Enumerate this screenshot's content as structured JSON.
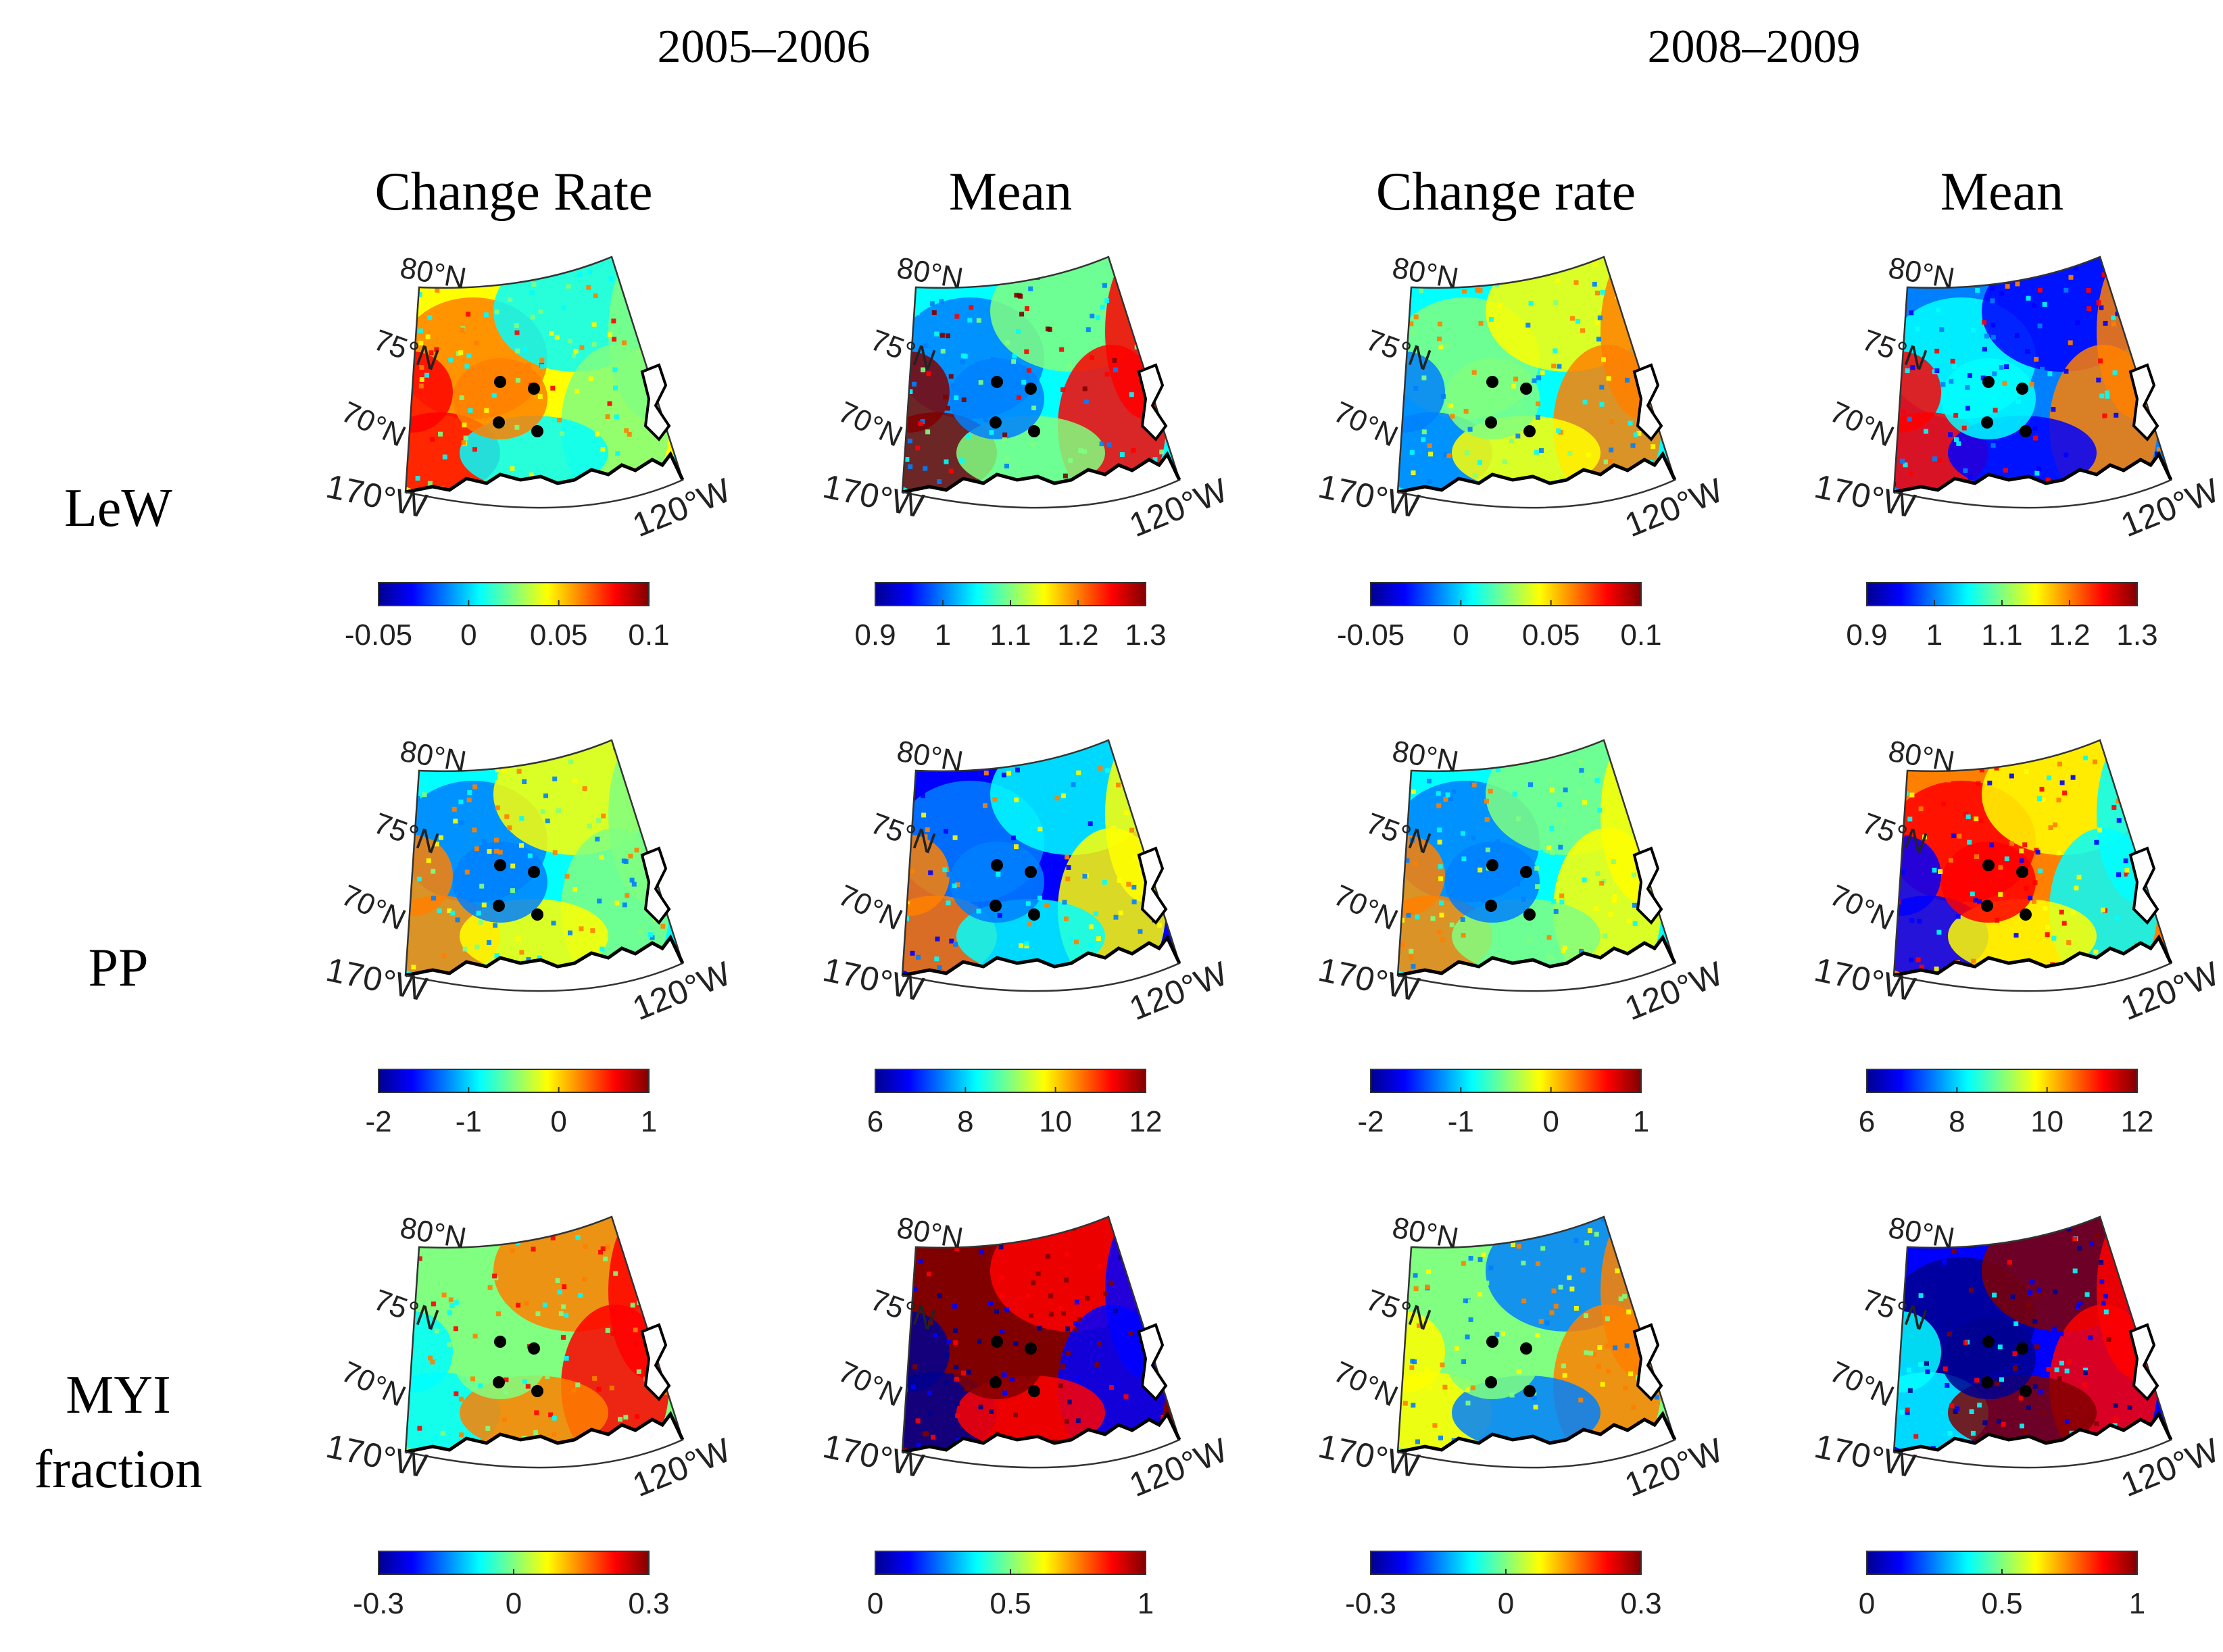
{
  "periods": [
    "2005–2006",
    "2008–2009"
  ],
  "column_titles": [
    "Change Rate",
    "Mean",
    "Change rate",
    "Mean"
  ],
  "rows": [
    {
      "label_lines": [
        "LeW"
      ]
    },
    {
      "label_lines": [
        "PP"
      ]
    },
    {
      "label_lines": [
        "MYI",
        "fraction"
      ]
    }
  ],
  "map_labels": {
    "lat": [
      "80°N",
      "75°N",
      "70°N"
    ],
    "lon_left": "170°W",
    "lon_right": "120°W"
  },
  "colorbar_ticks": [
    [
      [
        "-0.05",
        "0",
        "0.05",
        "0.1"
      ],
      [
        "0.9",
        "1",
        "1.1",
        "1.2",
        "1.3"
      ],
      [
        "-0.05",
        "0",
        "0.05",
        "0.1"
      ],
      [
        "0.9",
        "1",
        "1.1",
        "1.2",
        "1.3"
      ]
    ],
    [
      [
        "-2",
        "-1",
        "0",
        "1"
      ],
      [
        "6",
        "8",
        "10",
        "12"
      ],
      [
        "-2",
        "-1",
        "0",
        "1"
      ],
      [
        "6",
        "8",
        "10",
        "12"
      ]
    ],
    [
      [
        "-0.3",
        "0",
        "0.3"
      ],
      [
        "0",
        "0.5",
        "1"
      ],
      [
        "-0.3",
        "0",
        "0.3"
      ],
      [
        "0",
        "0.5",
        "1"
      ]
    ]
  ],
  "colormap": [
    "#00008f",
    "#0000ff",
    "#0080ff",
    "#00ffff",
    "#80ff80",
    "#ffff00",
    "#ff8000",
    "#ff0000",
    "#800000"
  ],
  "panel_palettes": [
    [
      [
        "#ffff00",
        "#ff8000",
        "#00ffff",
        "#80ff80",
        "#ff0000"
      ],
      [
        "#00ffff",
        "#0080ff",
        "#80ff80",
        "#ff0000",
        "#800000"
      ],
      [
        "#00ffff",
        "#80ff80",
        "#ffff00",
        "#ff8000",
        "#0080ff"
      ],
      [
        "#0080ff",
        "#00ffff",
        "#0000ff",
        "#ff8000",
        "#ff0000"
      ]
    ],
    [
      [
        "#00ffff",
        "#0080ff",
        "#ffff00",
        "#80ff80",
        "#ff8000"
      ],
      [
        "#0000ff",
        "#0080ff",
        "#00ffff",
        "#ffff00",
        "#ff8000"
      ],
      [
        "#00ffff",
        "#0080ff",
        "#80ff80",
        "#ffff00",
        "#ff8000"
      ],
      [
        "#ff8000",
        "#ff0000",
        "#ffff00",
        "#00ffff",
        "#0000ff"
      ]
    ],
    [
      [
        "#80ff80",
        "#80ff80",
        "#ff8000",
        "#ff0000",
        "#00ffff"
      ],
      [
        "#800000",
        "#800000",
        "#ff0000",
        "#0000ff",
        "#00008f"
      ],
      [
        "#80ff80",
        "#80ff80",
        "#0080ff",
        "#ff8000",
        "#ffff00"
      ],
      [
        "#0000ff",
        "#00008f",
        "#800000",
        "#ff0000",
        "#00ffff"
      ]
    ]
  ],
  "station_markers": 4
}
